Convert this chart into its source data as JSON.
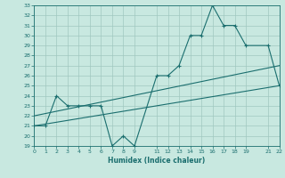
{
  "background_color": "#c8e8e0",
  "grid_color": "#a0c8c0",
  "line_color": "#1a6e6e",
  "xlabel": "Humidex (Indice chaleur)",
  "ylim": [
    19,
    33
  ],
  "xlim": [
    0,
    22
  ],
  "yticks": [
    19,
    20,
    21,
    22,
    23,
    24,
    25,
    26,
    27,
    28,
    29,
    30,
    31,
    32,
    33
  ],
  "xticks": [
    0,
    1,
    2,
    3,
    4,
    5,
    6,
    7,
    8,
    9,
    11,
    12,
    13,
    14,
    15,
    16,
    17,
    18,
    19,
    21,
    22
  ],
  "xtick_labels": [
    "0",
    "1",
    "2",
    "3",
    "4",
    "5",
    "6",
    "7",
    "8",
    "9",
    "11",
    "12",
    "13",
    "14",
    "15",
    "16",
    "17",
    "18",
    "19",
    "21",
    "22"
  ],
  "line1_x": [
    0,
    1,
    2,
    3,
    4,
    5,
    6,
    7,
    8,
    9,
    11,
    12,
    13,
    14,
    15,
    16,
    17,
    18,
    19,
    21,
    22
  ],
  "line1_y": [
    21,
    21,
    24,
    23,
    23,
    23,
    23,
    19,
    20,
    19,
    26,
    26,
    27,
    30,
    30,
    33,
    31,
    31,
    29,
    29,
    25
  ],
  "line2_x": [
    0,
    22
  ],
  "line2_y": [
    21,
    25
  ],
  "line3_x": [
    0,
    22
  ],
  "line3_y": [
    22,
    27
  ]
}
